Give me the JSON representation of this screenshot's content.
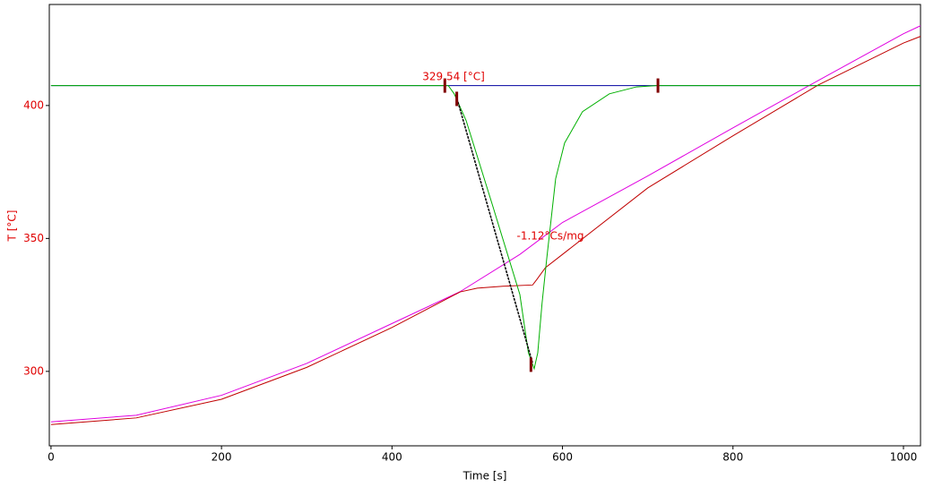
{
  "chart_data": {
    "type": "line",
    "xlabel": "Time [s]",
    "ylabel": "T [°C]",
    "xlim": [
      -2,
      1020
    ],
    "ylim": [
      272,
      438
    ],
    "xticks": [
      0,
      200,
      400,
      600,
      800,
      1000
    ],
    "yticks": [
      300,
      350,
      400
    ],
    "ytick_color": "#e00000",
    "grid": false,
    "series": [
      {
        "color": "#0000a0",
        "x": [
          0,
          1020
        ],
        "values": [
          407.5,
          407.5
        ]
      },
      {
        "color": "#e000e0",
        "x": [
          0,
          100,
          200,
          300,
          400,
          480,
          550,
          600,
          700,
          800,
          900,
          1000,
          1020
        ],
        "values": [
          281,
          283.5,
          291,
          303,
          318,
          330,
          344,
          356,
          373.5,
          391.6,
          409.4,
          427,
          430
        ]
      },
      {
        "color": "#c00000",
        "x": [
          0,
          100,
          200,
          300,
          400,
          480,
          500,
          530,
          565,
          570,
          580,
          600,
          700,
          800,
          900,
          1000,
          1020
        ],
        "values": [
          280,
          282.5,
          289.5,
          301.5,
          316.5,
          329.9,
          331.3,
          332,
          332.5,
          334.6,
          339,
          344,
          369,
          388.6,
          407.7,
          423.5,
          426
        ]
      },
      {
        "color": "#00b000",
        "x": [
          0,
          466,
          473,
          487,
          518,
          550,
          560,
          566.8,
          571,
          576,
          581.5,
          592,
          602.5,
          623.5,
          655,
          686.7,
          710,
          1020
        ],
        "values": [
          407.5,
          407.5,
          404.4,
          394.3,
          362.4,
          328.9,
          307,
          301,
          307,
          325.5,
          342.3,
          372.5,
          385.9,
          397.7,
          404.4,
          407,
          407.5,
          407.5
        ]
      },
      {
        "color": "#000000",
        "dash": true,
        "x": [
          475,
          565
        ],
        "values": [
          404,
          303
        ]
      }
    ],
    "markers": {
      "color": "#800000",
      "x": [
        462,
        476,
        563,
        712
      ],
      "values": [
        407.5,
        402.5,
        302.5,
        407.5
      ]
    },
    "annotations": [
      "329.54 [°C]",
      "-1.12°Cs/mg"
    ],
    "annotation_color": "#e00000"
  }
}
